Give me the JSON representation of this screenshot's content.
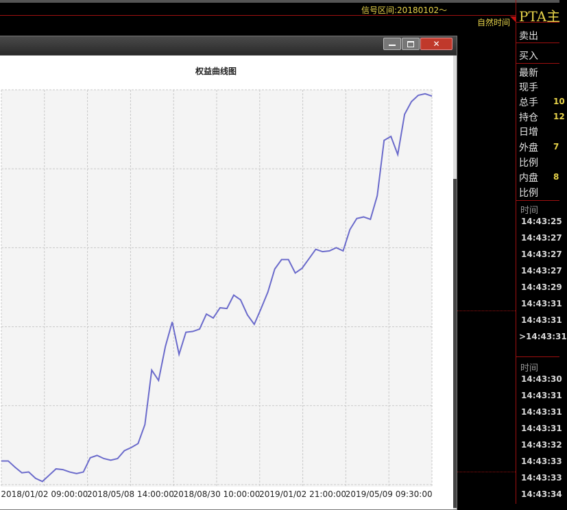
{
  "top_bar": {
    "signal_range": "信号区间:20180102～",
    "time_mode": "自然时间"
  },
  "chart_data": {
    "type": "line",
    "title": "权益曲线图",
    "xticks": [
      "2018/01/02 09:00:00",
      "2018/05/08 14:00:00",
      "2018/08/30 10:00:00",
      "2019/01/02 21:00:00",
      "2019/05/09 09:30:00"
    ],
    "series": [
      {
        "color": "#6a6acb",
        "values": [
          0.3,
          0.3,
          0.22,
          0.15,
          0.16,
          0.08,
          0.04,
          0.12,
          0.2,
          0.19,
          0.16,
          0.14,
          0.16,
          0.34,
          0.37,
          0.33,
          0.31,
          0.33,
          0.43,
          0.47,
          0.52,
          0.76,
          1.45,
          1.32,
          1.75,
          2.06,
          1.65,
          1.93,
          1.94,
          1.97,
          2.16,
          2.11,
          2.24,
          2.23,
          2.4,
          2.34,
          2.15,
          2.03,
          2.23,
          2.44,
          2.73,
          2.85,
          2.85,
          2.68,
          2.74,
          2.86,
          2.98,
          2.95,
          2.96,
          3.0,
          2.96,
          3.23,
          3.37,
          3.39,
          3.36,
          3.66,
          4.36,
          4.41,
          4.18,
          4.69,
          4.85,
          4.93,
          4.95,
          4.92
        ]
      }
    ],
    "ylim": [
      0,
      5
    ],
    "grid": true
  },
  "quote_panel": {
    "title": "PTA主",
    "rows": [
      [
        "卖出",
        ""
      ],
      [
        "买入",
        ""
      ],
      [
        "最新",
        ""
      ],
      [
        "现手",
        ""
      ],
      [
        "总手",
        "10"
      ],
      [
        "持仓",
        "12"
      ],
      [
        "日增",
        ""
      ],
      [
        "外盘",
        "7"
      ],
      [
        "比例",
        ""
      ],
      [
        "内盘",
        "8"
      ],
      [
        "比例",
        ""
      ]
    ]
  },
  "trades_1": {
    "header": "时间",
    "times": [
      "14:43:25",
      "14:43:27",
      "14:43:27",
      "14:43:27",
      "14:43:29",
      "14:43:31",
      "14:43:31",
      ">14:43:31"
    ]
  },
  "trades_2": {
    "header": "时间",
    "times": [
      "14:43:30",
      "14:43:31",
      "14:43:31",
      "14:43:31",
      "14:43:32",
      "14:43:33",
      "14:43:33",
      "14:43:34"
    ]
  }
}
